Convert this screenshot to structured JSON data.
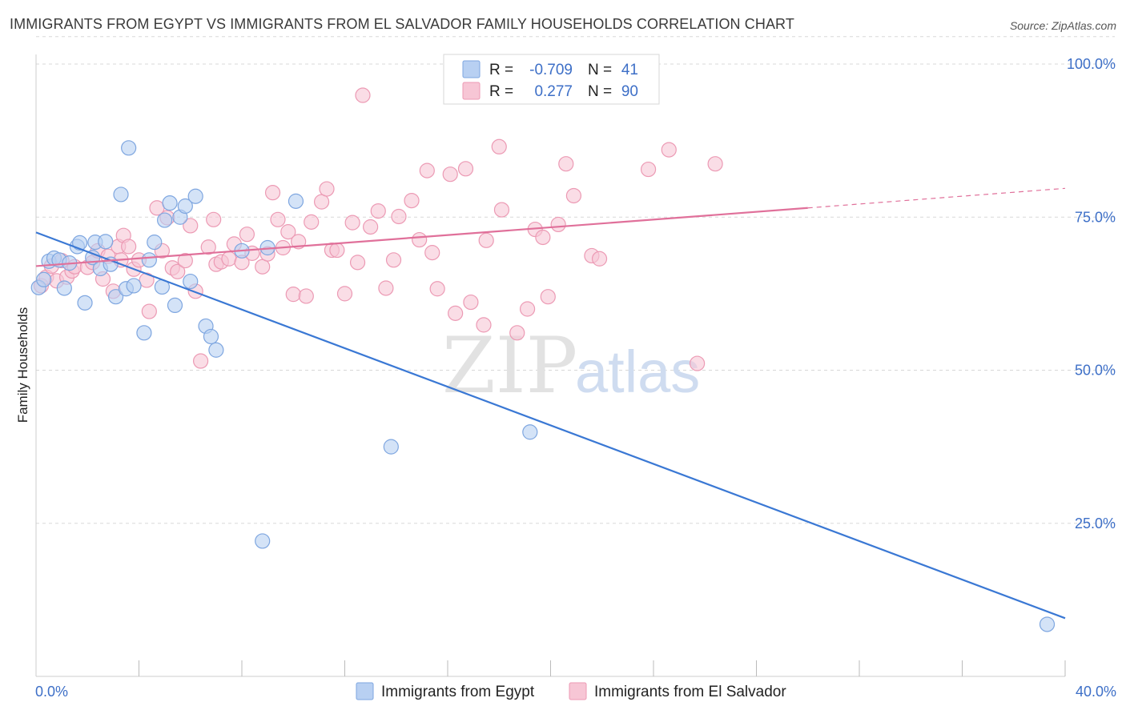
{
  "header": {
    "title": "IMMIGRANTS FROM EGYPT VS IMMIGRANTS FROM EL SALVADOR FAMILY HOUSEHOLDS CORRELATION CHART",
    "source": "Source: ZipAtlas.com"
  },
  "watermark": {
    "zip": "ZIP",
    "atlas": "atlas"
  },
  "colors": {
    "egypt_fill": "#b8d0f2",
    "egypt_stroke": "#7ea6e0",
    "egypt_line": "#3a78d4",
    "elsal_fill": "#f7c6d5",
    "elsal_stroke": "#ec9ab4",
    "elsal_line": "#e0709a",
    "grid": "#d8d8d8",
    "tick_text": "#3d6fc7"
  },
  "chart_data": {
    "type": "scatter",
    "ylabel": "Family Households",
    "xlim": [
      0,
      40
    ],
    "ylim": [
      0,
      105
    ],
    "x_tick_labels": [
      {
        "value": 0,
        "label": "0.0%"
      },
      {
        "value": 40,
        "label": "40.0%"
      }
    ],
    "x_minor_ticks": [
      4,
      8,
      12,
      16,
      20,
      24,
      28,
      32,
      36,
      40
    ],
    "y_ticks": [
      {
        "value": 25,
        "label": "25.0%"
      },
      {
        "value": 50,
        "label": "50.0%"
      },
      {
        "value": 75,
        "label": "75.0%"
      },
      {
        "value": 100,
        "label": "100.0%"
      }
    ],
    "grid": true,
    "legend_position": "top-center",
    "stats": [
      {
        "r_label": "R =",
        "r_value": "-0.709",
        "n_label": "N =",
        "n_value": "41"
      },
      {
        "r_label": "R =",
        "r_value": "0.277",
        "n_label": "N =",
        "n_value": "90"
      }
    ],
    "series": [
      {
        "name": "Immigrants from Egypt",
        "trend": {
          "x": [
            0,
            40
          ],
          "y": [
            72.5,
            9.5
          ],
          "dashed_to": null
        },
        "points": [
          [
            0.1,
            63.5
          ],
          [
            0.3,
            64.8
          ],
          [
            0.5,
            67.8
          ],
          [
            0.7,
            68.3
          ],
          [
            0.9,
            68.0
          ],
          [
            1.1,
            63.4
          ],
          [
            1.3,
            67.5
          ],
          [
            1.6,
            70.2
          ],
          [
            1.7,
            70.8
          ],
          [
            1.9,
            61.0
          ],
          [
            2.2,
            68.4
          ],
          [
            2.3,
            70.9
          ],
          [
            2.5,
            66.6
          ],
          [
            2.7,
            71.0
          ],
          [
            2.9,
            67.3
          ],
          [
            3.1,
            62.0
          ],
          [
            3.3,
            78.7
          ],
          [
            3.5,
            63.3
          ],
          [
            3.6,
            86.3
          ],
          [
            3.8,
            63.8
          ],
          [
            4.2,
            56.1
          ],
          [
            4.4,
            68.0
          ],
          [
            4.6,
            70.9
          ],
          [
            4.9,
            63.6
          ],
          [
            5.0,
            74.5
          ],
          [
            5.2,
            77.3
          ],
          [
            5.4,
            60.6
          ],
          [
            5.6,
            75.0
          ],
          [
            5.8,
            76.8
          ],
          [
            6.0,
            64.5
          ],
          [
            6.2,
            78.4
          ],
          [
            6.6,
            57.2
          ],
          [
            6.8,
            55.5
          ],
          [
            7.0,
            53.3
          ],
          [
            8.0,
            69.5
          ],
          [
            8.8,
            22.1
          ],
          [
            9.0,
            70.0
          ],
          [
            10.1,
            77.6
          ],
          [
            13.8,
            37.5
          ],
          [
            19.2,
            39.9
          ],
          [
            39.3,
            8.5
          ]
        ]
      },
      {
        "name": "Immigrants from El Salvador",
        "trend": {
          "x": [
            0,
            30
          ],
          "y": [
            67.0,
            76.5
          ],
          "dashed_to": {
            "x": 40,
            "y": 79.7
          }
        },
        "points": [
          [
            0.2,
            63.8
          ],
          [
            0.4,
            65.2
          ],
          [
            0.6,
            67.0
          ],
          [
            0.8,
            64.6
          ],
          [
            1.0,
            67.9
          ],
          [
            1.2,
            65.2
          ],
          [
            1.4,
            66.2
          ],
          [
            1.5,
            66.9
          ],
          [
            2.0,
            66.8
          ],
          [
            2.2,
            67.6
          ],
          [
            2.4,
            69.5
          ],
          [
            2.6,
            64.9
          ],
          [
            2.8,
            68.6
          ],
          [
            3.0,
            62.9
          ],
          [
            3.2,
            70.2
          ],
          [
            3.4,
            72.0
          ],
          [
            3.6,
            70.2
          ],
          [
            3.8,
            66.5
          ],
          [
            4.0,
            68.0
          ],
          [
            4.3,
            64.7
          ],
          [
            4.4,
            59.6
          ],
          [
            4.7,
            76.5
          ],
          [
            4.9,
            69.5
          ],
          [
            5.1,
            74.9
          ],
          [
            5.3,
            66.7
          ],
          [
            5.5,
            66.1
          ],
          [
            5.8,
            67.9
          ],
          [
            6.0,
            73.6
          ],
          [
            6.2,
            62.9
          ],
          [
            6.4,
            51.5
          ],
          [
            6.7,
            70.1
          ],
          [
            6.9,
            74.6
          ],
          [
            7.0,
            67.3
          ],
          [
            7.2,
            67.7
          ],
          [
            7.5,
            68.2
          ],
          [
            7.7,
            70.6
          ],
          [
            8.0,
            67.6
          ],
          [
            8.2,
            72.2
          ],
          [
            8.4,
            69.1
          ],
          [
            8.8,
            66.9
          ],
          [
            9.0,
            69.0
          ],
          [
            9.2,
            79.0
          ],
          [
            9.4,
            74.6
          ],
          [
            9.6,
            70.0
          ],
          [
            9.8,
            72.6
          ],
          [
            10.0,
            62.4
          ],
          [
            10.2,
            71.0
          ],
          [
            10.5,
            62.1
          ],
          [
            10.7,
            74.2
          ],
          [
            11.1,
            77.5
          ],
          [
            11.3,
            79.6
          ],
          [
            11.5,
            69.6
          ],
          [
            11.7,
            69.6
          ],
          [
            12.0,
            62.5
          ],
          [
            12.3,
            74.1
          ],
          [
            12.5,
            67.6
          ],
          [
            12.7,
            94.9
          ],
          [
            13.0,
            73.4
          ],
          [
            13.3,
            76.0
          ],
          [
            13.6,
            63.4
          ],
          [
            13.9,
            68.0
          ],
          [
            14.1,
            75.1
          ],
          [
            14.6,
            77.7
          ],
          [
            14.9,
            71.3
          ],
          [
            15.2,
            82.6
          ],
          [
            15.4,
            69.2
          ],
          [
            15.6,
            63.3
          ],
          [
            16.1,
            82.0
          ],
          [
            16.3,
            59.3
          ],
          [
            16.7,
            82.9
          ],
          [
            16.9,
            61.1
          ],
          [
            17.5,
            71.2
          ],
          [
            17.4,
            57.4
          ],
          [
            18.0,
            86.5
          ],
          [
            18.7,
            56.1
          ],
          [
            19.1,
            60.0
          ],
          [
            19.4,
            73.0
          ],
          [
            19.7,
            71.7
          ],
          [
            20.3,
            73.8
          ],
          [
            20.6,
            83.7
          ],
          [
            20.9,
            78.5
          ],
          [
            21.6,
            68.7
          ],
          [
            21.9,
            68.2
          ],
          [
            23.8,
            82.8
          ],
          [
            24.6,
            86.0
          ],
          [
            25.7,
            51.1
          ],
          [
            26.4,
            83.7
          ],
          [
            19.9,
            62.0
          ],
          [
            18.1,
            76.2
          ],
          [
            3.3,
            68.0
          ]
        ]
      }
    ]
  }
}
